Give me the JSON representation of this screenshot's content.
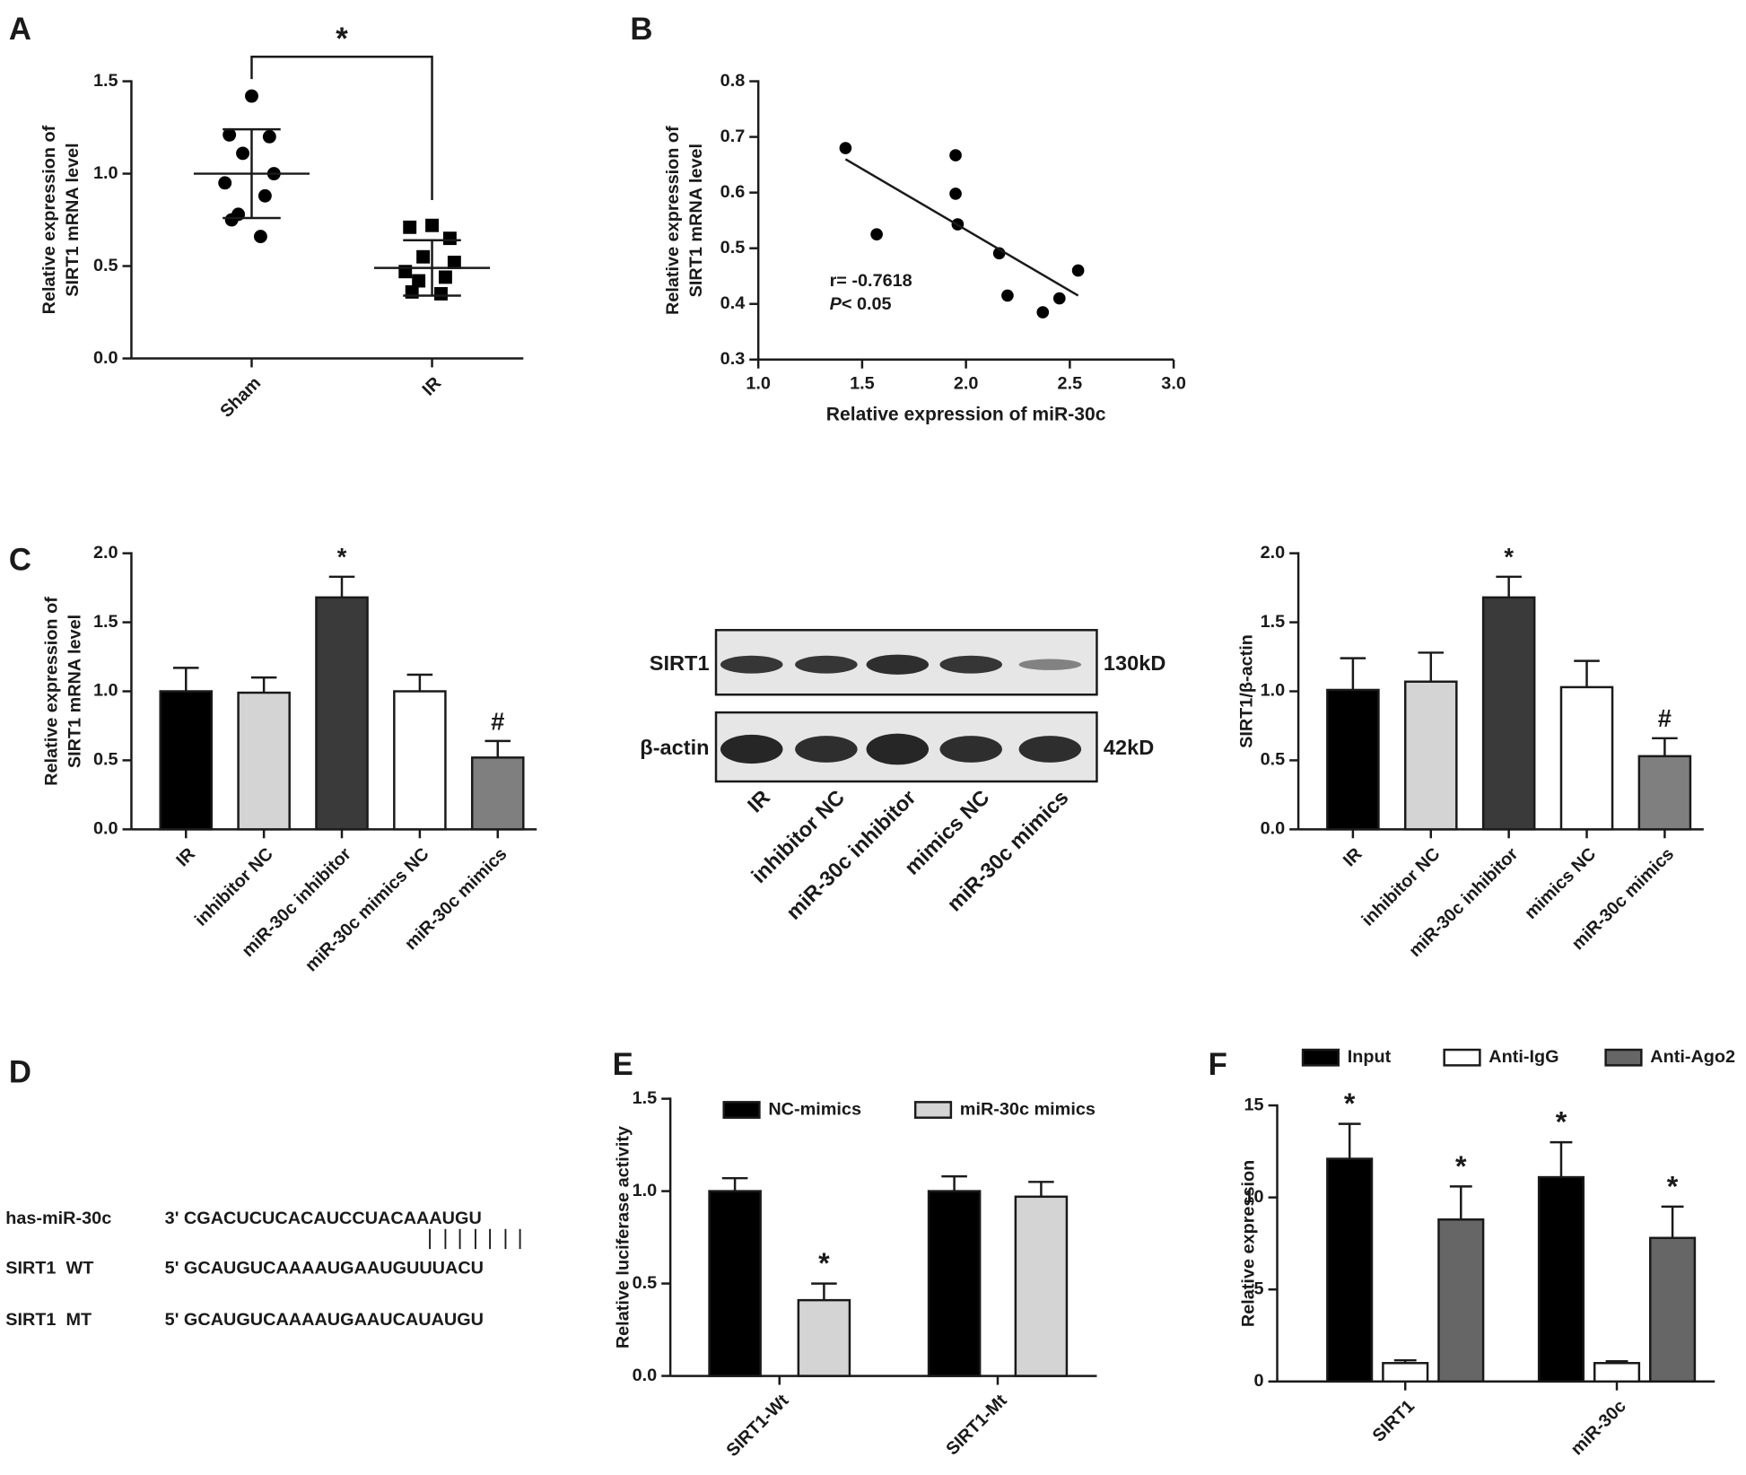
{
  "chart_data": [
    {
      "type": "dot_plot",
      "panel": "A",
      "ylabel": [
        "Relative expression of",
        "SIRT1 mRNA level"
      ],
      "categories": [
        "Sham",
        "IR"
      ],
      "values": [
        [
          1.42,
          1.21,
          1.2,
          1.11,
          1.0,
          0.95,
          0.88,
          0.78,
          0.75,
          0.66
        ],
        [
          0.72,
          0.71,
          0.65,
          0.55,
          0.52,
          0.47,
          0.44,
          0.42,
          0.36,
          0.35
        ]
      ],
      "means": [
        1.0,
        0.49
      ],
      "sds": [
        0.24,
        0.15
      ],
      "markers": [
        "circle",
        "square"
      ],
      "color": "#000000",
      "annotation": "*",
      "ylim": [
        0,
        1.5
      ],
      "yticks": [
        {
          "value": 0,
          "label": "0.0"
        },
        0.5,
        {
          "value": 1,
          "label": "1.0"
        },
        1.5
      ]
    },
    {
      "type": "scatter",
      "panel": "B",
      "ylabel": [
        "Relative expression of",
        "SIRT1 mRNA level"
      ],
      "xlabel": "Relative expression of miR-30c",
      "x": [
        1.42,
        1.57,
        1.95,
        1.95,
        1.96,
        2.16,
        2.2,
        2.37,
        2.45,
        2.54
      ],
      "values": [
        0.68,
        0.525,
        0.667,
        0.598,
        0.543,
        0.491,
        0.415,
        0.385,
        0.41,
        0.46
      ],
      "fit_line": {
        "x": [
          1.42,
          2.54
        ],
        "y": [
          0.66,
          0.415
        ]
      },
      "stat_r": "r= -0.7618",
      "stat_p_symbol": "P",
      "stat_p_text": "< 0.05",
      "color": "#000000",
      "xlim": [
        1,
        3
      ],
      "xticks": [
        {
          "value": 1,
          "label": "1.0"
        },
        1.5,
        {
          "value": 2,
          "label": "2.0"
        },
        2.5,
        {
          "value": 3,
          "label": "3.0"
        }
      ],
      "ylim": [
        0.3,
        0.8
      ],
      "yticks": [
        0.3,
        0.4,
        0.5,
        0.6,
        0.7,
        0.8
      ]
    },
    {
      "type": "bar",
      "panel": "C",
      "ylabel": [
        "Relative expression of",
        "SIRT1 mRNA level"
      ],
      "categories": [
        "IR",
        "inhibitor NC",
        "miR-30c inhibitor",
        "miR-30c mimics NC",
        "miR-30c mimics"
      ],
      "values": [
        1.0,
        0.99,
        1.68,
        1.0,
        0.52
      ],
      "errors": [
        0.17,
        0.11,
        0.15,
        0.12,
        0.12
      ],
      "annotations": [
        null,
        null,
        "*",
        null,
        "#"
      ],
      "colors": [
        "#000000",
        "#d4d4d4",
        "#3a3a3a",
        "#ffffff",
        "#7f7f7f"
      ],
      "ylim": [
        0,
        2
      ],
      "yticks": [
        {
          "value": 0,
          "label": "0.0"
        },
        0.5,
        {
          "value": 1,
          "label": "1.0"
        },
        1.5,
        {
          "value": 2,
          "label": "2.0"
        }
      ]
    },
    {
      "type": "blot",
      "rows": [
        {
          "label": "SIRT1",
          "size": "130kD"
        },
        {
          "label": "β-actin",
          "size": "42kD"
        }
      ],
      "lanes": [
        "IR",
        "inhibitor NC",
        "miR-30c inhibitor",
        "mimics NC",
        "miR-30c mimics"
      ]
    },
    {
      "type": "bar",
      "ylabel": [
        "SIRT1/β-actin"
      ],
      "categories": [
        "IR",
        "inhibitor NC",
        "miR-30c inhibitor",
        "mimics NC",
        "miR-30c mimics"
      ],
      "values": [
        1.01,
        1.07,
        1.68,
        1.03,
        0.53
      ],
      "errors": [
        0.23,
        0.21,
        0.15,
        0.19,
        0.13
      ],
      "annotations": [
        null,
        null,
        "*",
        null,
        "#"
      ],
      "colors": [
        "#000000",
        "#d4d4d4",
        "#3a3a3a",
        "#ffffff",
        "#7f7f7f"
      ],
      "ylim": [
        0,
        2
      ],
      "yticks": [
        {
          "value": 0,
          "label": "0.0"
        },
        0.5,
        {
          "value": 1,
          "label": "1.0"
        },
        1.5,
        {
          "value": 2,
          "label": "2.0"
        }
      ]
    },
    {
      "type": "sequence",
      "panel": "D",
      "rows": [
        {
          "name": "has-miR-30c",
          "sequence": "3' CGACUCUCACAUCCUACAAAUGU"
        },
        {
          "name": "SIRT1  WT",
          "sequence": "5' GCAUGUCAAAAUGAAUGUUUACU"
        },
        {
          "name": "SIRT1  MT",
          "sequence": "5' GCAUGUCAAAAUGAAUCAUAUGU"
        }
      ]
    },
    {
      "type": "grouped_bar",
      "panel": "E",
      "ylabel": [
        "Relative luciferase activity"
      ],
      "categories": [
        "SIRT1-Wt",
        "SIRT1-Mt"
      ],
      "series": [
        {
          "name": "NC-mimics",
          "color": "#000000",
          "values": [
            1.0,
            1.0
          ],
          "errors": [
            0.07,
            0.08
          ],
          "annotations": [
            null,
            null
          ]
        },
        {
          "name": "miR-30c mimics",
          "color": "#d4d4d4",
          "values": [
            0.41,
            0.97
          ],
          "errors": [
            0.09,
            0.08
          ],
          "annotations": [
            "*",
            null
          ]
        }
      ],
      "ylim": [
        0,
        1.5
      ],
      "yticks": [
        {
          "value": 0,
          "label": "0.0"
        },
        0.5,
        {
          "value": 1,
          "label": "1.0"
        },
        1.5
      ]
    },
    {
      "type": "grouped_bar",
      "panel": "F",
      "ylabel": [
        "Relative expression"
      ],
      "categories": [
        "SIRT1",
        "miR-30c"
      ],
      "series": [
        {
          "name": "Input",
          "color": "#000000",
          "values": [
            12.1,
            11.1
          ],
          "errors": [
            1.9,
            1.9
          ],
          "annotations": [
            "*",
            "*"
          ]
        },
        {
          "name": "Anti-IgG",
          "color": "#ffffff",
          "values": [
            1.0,
            1.0
          ],
          "errors": [
            0.15,
            0.1
          ],
          "annotations": [
            null,
            null
          ]
        },
        {
          "name": "Anti-Ago2",
          "color": "#666666",
          "values": [
            8.8,
            7.8
          ],
          "errors": [
            1.8,
            1.7
          ],
          "annotations": [
            "*",
            "*"
          ]
        }
      ],
      "ylim": [
        0,
        15
      ],
      "yticks": [
        0,
        5,
        10,
        15
      ]
    }
  ]
}
